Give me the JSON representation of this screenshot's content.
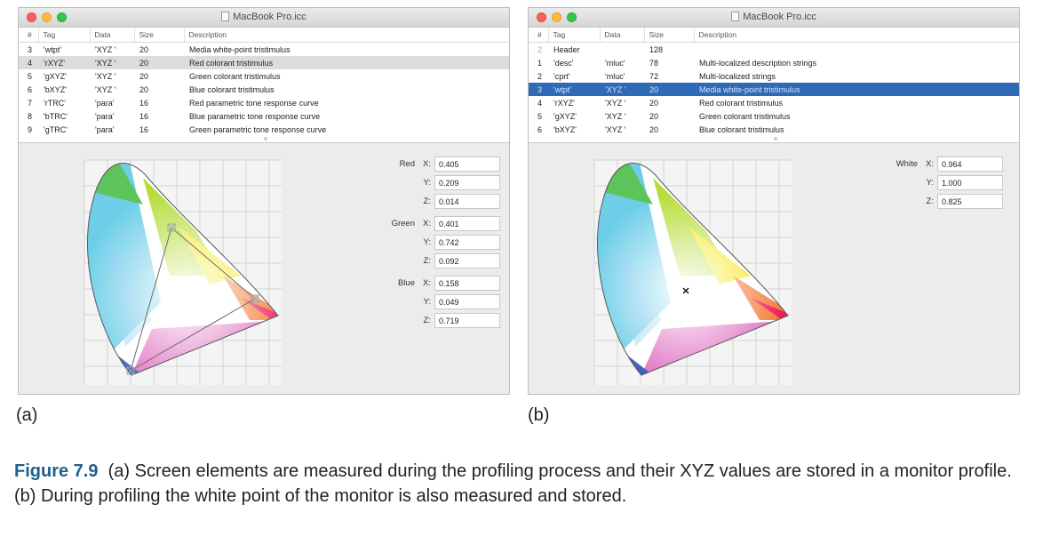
{
  "window_a": {
    "title": "MacBook Pro.icc",
    "headers": [
      "#",
      "Tag",
      "Data",
      "Size",
      "Description"
    ],
    "rows": [
      {
        "num": "3",
        "tag": "'wtpt'",
        "data": "'XYZ '",
        "size": "20",
        "desc": "Media white-point tristimulus"
      },
      {
        "num": "4",
        "tag": "'rXYZ'",
        "data": "'XYZ '",
        "size": "20",
        "desc": "Red colorant tristimulus"
      },
      {
        "num": "5",
        "tag": "'gXYZ'",
        "data": "'XYZ '",
        "size": "20",
        "desc": "Green colorant tristimulus"
      },
      {
        "num": "6",
        "tag": "'bXYZ'",
        "data": "'XYZ '",
        "size": "20",
        "desc": "Blue colorant tristimulus"
      },
      {
        "num": "7",
        "tag": "'rTRC'",
        "data": "'para'",
        "size": "16",
        "desc": "Red parametric tone response curve"
      },
      {
        "num": "8",
        "tag": "'bTRC'",
        "data": "'para'",
        "size": "16",
        "desc": "Blue parametric tone response curve"
      },
      {
        "num": "9",
        "tag": "'gTRC'",
        "data": "'para'",
        "size": "16",
        "desc": "Green parametric tone response curve"
      }
    ],
    "selected_row": 1,
    "groups": [
      {
        "label": "Red",
        "x": "0.405",
        "y": "0.209",
        "z": "0.014"
      },
      {
        "label": "Green",
        "x": "0.401",
        "y": "0.742",
        "z": "0.092"
      },
      {
        "label": "Blue",
        "x": "0.158",
        "y": "0.049",
        "z": "0.719"
      }
    ]
  },
  "window_b": {
    "title": "MacBook Pro.icc",
    "headers": [
      "#",
      "Tag",
      "Data",
      "Size",
      "Description"
    ],
    "rows": [
      {
        "num": "2",
        "tag": "Header",
        "data": "",
        "size": "128",
        "desc": ""
      },
      {
        "num": "1",
        "tag": "'desc'",
        "data": "'mluc'",
        "size": "78",
        "desc": "Multi-localized description strings"
      },
      {
        "num": "2",
        "tag": "'cprt'",
        "data": "'mluc'",
        "size": "72",
        "desc": "Multi-localized strings"
      },
      {
        "num": "3",
        "tag": "'wtpt'",
        "data": "'XYZ '",
        "size": "20",
        "desc": "Media white-point tristimulus"
      },
      {
        "num": "4",
        "tag": "'rXYZ'",
        "data": "'XYZ '",
        "size": "20",
        "desc": "Red colorant tristimulus"
      },
      {
        "num": "5",
        "tag": "'gXYZ'",
        "data": "'XYZ '",
        "size": "20",
        "desc": "Green colorant tristimulus"
      },
      {
        "num": "6",
        "tag": "'bXYZ'",
        "data": "'XYZ '",
        "size": "20",
        "desc": "Blue colorant tristimulus"
      }
    ],
    "selected_row": 3,
    "groups": [
      {
        "label": "White",
        "x": "0.964",
        "y": "1.000",
        "z": "0.825"
      }
    ]
  },
  "axis_labels": {
    "x": "X:",
    "y": "Y:",
    "z": "Z:"
  },
  "panel_labels": {
    "a": "(a)",
    "b": "(b)"
  },
  "caption": {
    "figure_label": "Figure 7.9",
    "text": "(a) Screen elements are measured during the profiling process and their XYZ values are stored in a monitor profile. (b) During profiling the white point of the monitor is also measured and stored."
  },
  "colors": {
    "selection_blue": "#2e6ab5",
    "selection_gray": "#dcdcdc",
    "figure_label": "#1f5f8b"
  }
}
